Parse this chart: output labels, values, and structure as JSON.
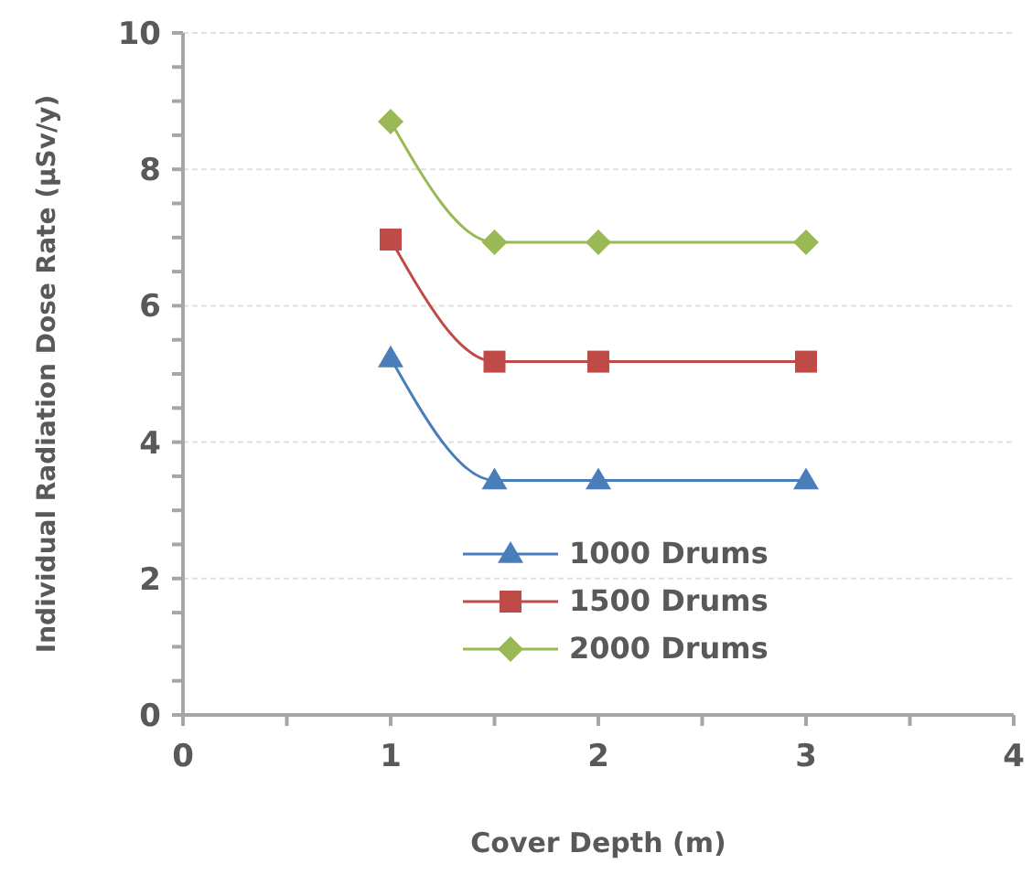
{
  "chart_data": {
    "type": "line",
    "xlabel": "Cover Depth (m)",
    "ylabel": "Individual Radiation Dose Rate (µSv/y)",
    "x": [
      1,
      1.5,
      2,
      3
    ],
    "xlim": [
      0,
      4
    ],
    "xticks": [
      0,
      {
        "value": 0.5,
        "label": null
      },
      1,
      {
        "value": 1.5,
        "label": null
      },
      2,
      {
        "value": 2.5,
        "label": null
      },
      3,
      {
        "value": 3.5,
        "label": null
      },
      4
    ],
    "ylim": [
      0,
      10
    ],
    "yticks": [
      0,
      {
        "value": 0.5,
        "label": null
      },
      {
        "value": 1,
        "label": null
      },
      {
        "value": 1.5,
        "label": null
      },
      2,
      {
        "value": 2.5,
        "label": null
      },
      {
        "value": 3,
        "label": null
      },
      {
        "value": 3.5,
        "label": null
      },
      4,
      {
        "value": 4.5,
        "label": null
      },
      {
        "value": 5,
        "label": null
      },
      {
        "value": 5.5,
        "label": null
      },
      6,
      {
        "value": 6.5,
        "label": null
      },
      {
        "value": 7,
        "label": null
      },
      {
        "value": 7.5,
        "label": null
      },
      8,
      {
        "value": 8.5,
        "label": null
      },
      {
        "value": 9,
        "label": null
      },
      {
        "value": 9.5,
        "label": null
      },
      10
    ],
    "grid": "y",
    "legend": "bottom",
    "line_style": "solid",
    "series": [
      {
        "name": "1000 Drums",
        "color": "#4a7ebb",
        "marker": "triangle",
        "values": [
          5.23,
          3.44,
          3.44,
          3.44
        ]
      },
      {
        "name": "1500 Drums",
        "color": "#be4b48",
        "marker": "square",
        "values": [
          6.97,
          5.18,
          5.18,
          5.18
        ]
      },
      {
        "name": "2000 Drums",
        "color": "#98b954",
        "marker": "diamond",
        "values": [
          8.7,
          6.93,
          6.93,
          6.93
        ]
      }
    ]
  }
}
